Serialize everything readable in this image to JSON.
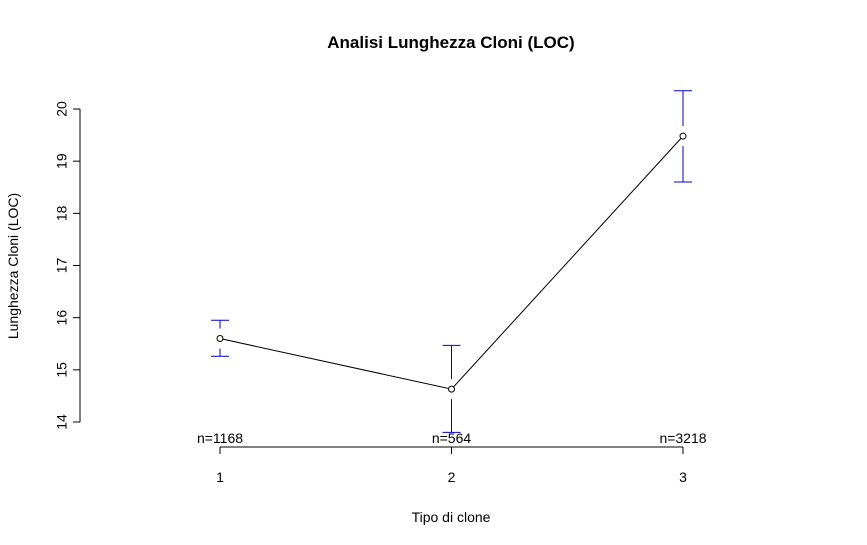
{
  "chart_data": {
    "type": "line",
    "title": "Analisi Lunghezza Cloni (LOC)",
    "xlabel": "Tipo di clone",
    "ylabel": "Lunghezza Cloni (LOC)",
    "x": [
      "1",
      "2",
      "3"
    ],
    "series": [
      {
        "values": [
          15.6,
          14.63,
          19.48
        ],
        "ci_low": [
          15.26,
          13.8,
          18.6
        ],
        "ci_high": [
          15.95,
          15.47,
          20.35
        ]
      }
    ],
    "n_labels": [
      "n=1168",
      "n=564",
      "n=3218"
    ],
    "yticks": [
      "14",
      "15",
      "16",
      "17",
      "18",
      "19",
      "20"
    ],
    "ylim": [
      14,
      20
    ],
    "xlim": [
      1,
      3
    ],
    "grid": false,
    "colors": {
      "line": "#000000",
      "errorbar": "#0000cd"
    }
  }
}
